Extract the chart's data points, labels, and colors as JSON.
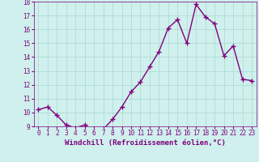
{
  "x": [
    0,
    1,
    2,
    3,
    4,
    5,
    6,
    7,
    8,
    9,
    10,
    11,
    12,
    13,
    14,
    15,
    16,
    17,
    18,
    19,
    20,
    21,
    22,
    23
  ],
  "y": [
    10.2,
    10.4,
    9.8,
    9.1,
    8.9,
    9.1,
    8.7,
    8.8,
    9.5,
    10.4,
    11.5,
    12.2,
    13.3,
    14.4,
    16.1,
    16.7,
    15.0,
    17.8,
    16.9,
    16.4,
    14.1,
    14.8,
    12.4,
    12.3
  ],
  "line_color": "#800080",
  "marker": "+",
  "marker_size": 4,
  "bg_color": "#cff0ec",
  "grid_color": "#aad8d3",
  "xlabel": "Windchill (Refroidissement éolien,°C)",
  "ylim": [
    9,
    18
  ],
  "xlim_min": -0.5,
  "xlim_max": 23.5,
  "yticks": [
    9,
    10,
    11,
    12,
    13,
    14,
    15,
    16,
    17,
    18
  ],
  "xticks": [
    0,
    1,
    2,
    3,
    4,
    5,
    6,
    7,
    8,
    9,
    10,
    11,
    12,
    13,
    14,
    15,
    16,
    17,
    18,
    19,
    20,
    21,
    22,
    23
  ],
  "tick_color": "#800080",
  "tick_fontsize": 5.5,
  "xlabel_fontsize": 6.5,
  "linewidth": 1.0,
  "marker_color": "#800080"
}
